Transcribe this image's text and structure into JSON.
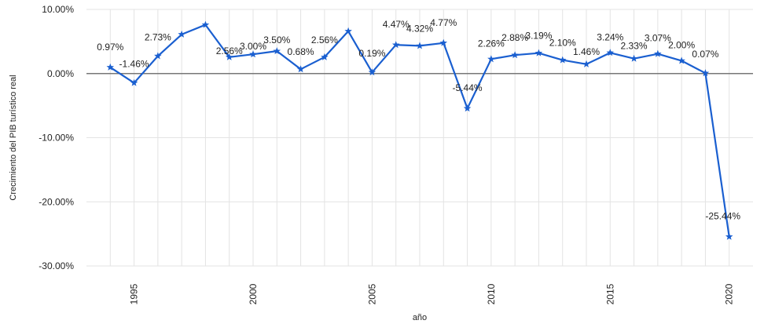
{
  "chart_data": {
    "type": "line",
    "title": "",
    "xlabel": "año",
    "ylabel": "Crecimiento del PIB turístico real",
    "xlim": [
      1993,
      2021
    ],
    "ylim": [
      -30,
      10
    ],
    "y_ticks": [
      "10.00%",
      "0.00%",
      "-10.00%",
      "-20.00%",
      "-30.00%"
    ],
    "y_tick_values": [
      10,
      0,
      -10,
      -20,
      -30
    ],
    "x_ticks": [
      "1995",
      "2000",
      "2005",
      "2010",
      "2015",
      "2020"
    ],
    "x_tick_values": [
      1995,
      2000,
      2005,
      2010,
      2015,
      2020
    ],
    "grid": true,
    "legend": "none",
    "line_color": "#1a5fd0",
    "zero_line_color": "#777777",
    "marker": "star",
    "series": [
      {
        "x": [
          1994,
          1995,
          1996,
          1997,
          1998,
          1999,
          2000,
          2001,
          2002,
          2003,
          2004,
          2005,
          2006,
          2007,
          2008,
          2009,
          2010,
          2011,
          2012,
          2013,
          2014,
          2015,
          2016,
          2017,
          2018,
          2019,
          2020
        ],
        "values": [
          0.97,
          -1.46,
          2.73,
          6.1,
          7.6,
          2.56,
          3.0,
          3.5,
          0.68,
          2.56,
          6.6,
          0.19,
          4.47,
          4.32,
          4.77,
          -5.44,
          2.26,
          2.88,
          3.19,
          2.1,
          1.46,
          3.24,
          2.33,
          3.07,
          2.0,
          0.07,
          -25.44
        ]
      }
    ],
    "data_labels": [
      {
        "x": 1994,
        "text": "0.97%"
      },
      {
        "x": 1995,
        "text": "-1.46%"
      },
      {
        "x": 1996,
        "text": "2.73%"
      },
      {
        "x": 1999,
        "text": "2.56%"
      },
      {
        "x": 2000,
        "text": "3.00%"
      },
      {
        "x": 2001,
        "text": "3.50%"
      },
      {
        "x": 2002,
        "text": "0.68%"
      },
      {
        "x": 2003,
        "text": "2.56%"
      },
      {
        "x": 2005,
        "text": "0.19%"
      },
      {
        "x": 2006,
        "text": "4.47%"
      },
      {
        "x": 2007,
        "text": "4.32%"
      },
      {
        "x": 2008,
        "text": "4.77%"
      },
      {
        "x": 2009,
        "text": "-5.44%"
      },
      {
        "x": 2010,
        "text": "2.26%"
      },
      {
        "x": 2011,
        "text": "2.88%"
      },
      {
        "x": 2012,
        "text": "3.19%"
      },
      {
        "x": 2013,
        "text": "2.10%"
      },
      {
        "x": 2014,
        "text": "1.46%"
      },
      {
        "x": 2015,
        "text": "3.24%"
      },
      {
        "x": 2016,
        "text": "2.33%"
      },
      {
        "x": 2017,
        "text": "3.07%"
      },
      {
        "x": 2018,
        "text": "2.00%"
      },
      {
        "x": 2019,
        "text": "0.07%"
      },
      {
        "x": 2020,
        "text": "-25.44%"
      }
    ]
  }
}
